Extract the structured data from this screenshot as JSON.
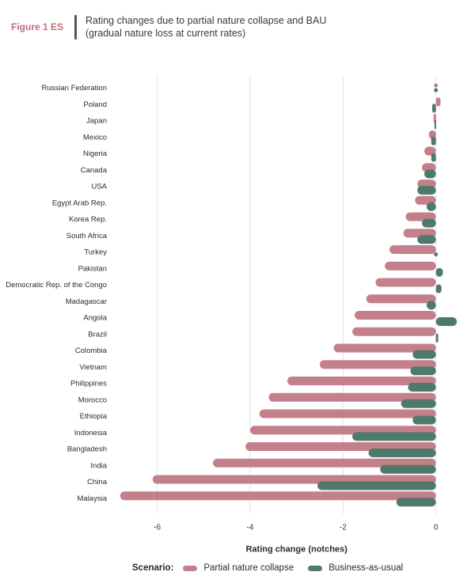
{
  "header": {
    "figure_label": "Figure 1 ES",
    "title_line1": "Rating changes due to partial nature collapse and BAU",
    "title_line2": "(gradual nature loss at current rates)"
  },
  "colors": {
    "accent": "#c06b78",
    "partial": "#c4808a",
    "bau": "#4f7a6b",
    "grid": "#e3e3e3"
  },
  "legend": {
    "title": "Scenario:",
    "items": [
      {
        "label": "Partial nature collapse"
      },
      {
        "label": "Business-as-usual"
      }
    ]
  },
  "chart_data": {
    "type": "bar",
    "orientation": "horizontal",
    "xlabel": "Rating change (notches)",
    "xlim": [
      -7,
      0.5
    ],
    "xticks": [
      -6,
      -4,
      -2,
      0
    ],
    "grid": true,
    "legend_position": "bottom",
    "categories": [
      "Russian Federation",
      "Poland",
      "Japan",
      "Mexico",
      "Nigeria",
      "Canada",
      "USA",
      "Egypt Arab Rep.",
      "Korea Rep.",
      "South Africa",
      "Turkey",
      "Pakistan",
      "Democratic Rep. of the Congo",
      "Madagascar",
      "Angola",
      "Brazil",
      "Colombia",
      "Vietnam",
      "Philippines",
      "Morocco",
      "Ethiopia",
      "Indonesia",
      "Bangladesh",
      "India",
      "China",
      "Malaysia"
    ],
    "series": [
      {
        "name": "Partial nature collapse",
        "values": [
          0.0,
          0.1,
          -0.05,
          -0.15,
          -0.25,
          -0.3,
          -0.4,
          -0.45,
          -0.65,
          -0.7,
          -1.0,
          -1.1,
          -1.3,
          -1.5,
          -1.75,
          -1.8,
          -2.2,
          -2.5,
          -3.2,
          -3.6,
          -3.8,
          -4.0,
          -4.1,
          -4.8,
          -6.1,
          -6.8
        ]
      },
      {
        "name": "Business-as-usual",
        "values": [
          0.0,
          -0.08,
          -0.03,
          -0.1,
          -0.1,
          -0.25,
          -0.4,
          -0.2,
          -0.3,
          -0.4,
          0.0,
          0.15,
          0.12,
          -0.2,
          0.45,
          0.05,
          -0.5,
          -0.55,
          -0.6,
          -0.75,
          -0.5,
          -1.8,
          -1.45,
          -1.2,
          -2.55,
          -0.85
        ]
      }
    ]
  }
}
